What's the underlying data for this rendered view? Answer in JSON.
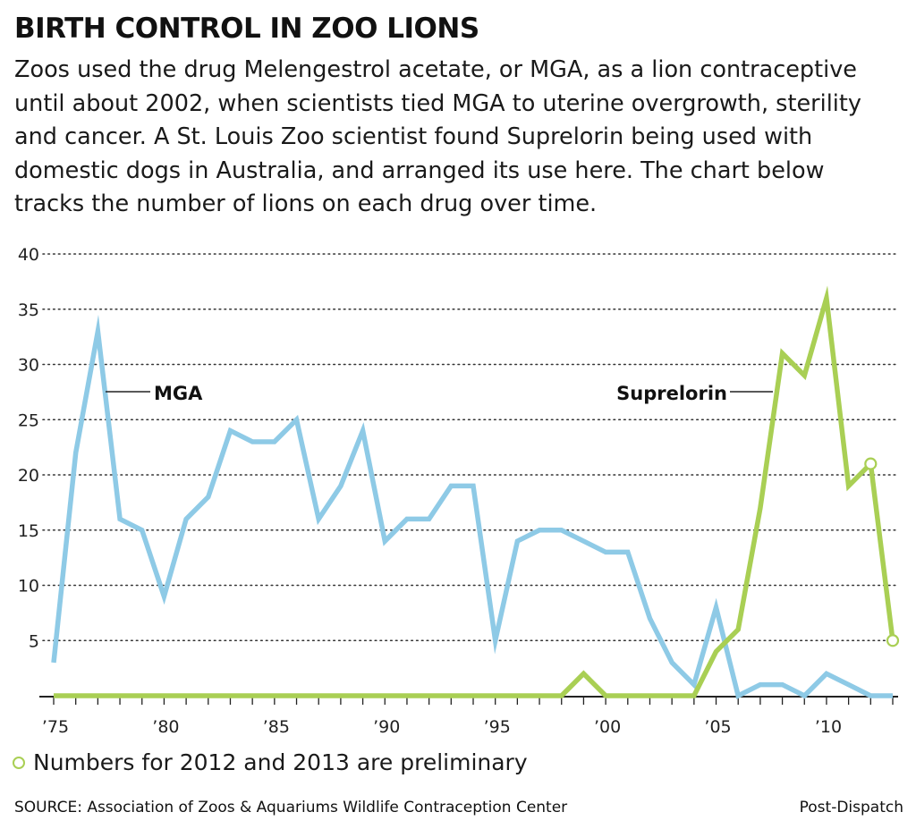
{
  "title": "BIRTH CONTROL IN ZOO LIONS",
  "intro": "Zoos used the drug Melengestrol acetate, or MGA, as a lion contraceptive until about 2002, when scientists tied MGA to uterine overgrowth, sterility and cancer. A St. Louis Zoo scientist found Suprelorin being used with domestic dogs in Australia, and arranged its use here. The chart below tracks the number of lions on each drug over time.",
  "note": "Numbers for 2012 and 2013 are preliminary",
  "source": "SOURCE: Association of Zoos & Aquariums Wildlife Contraception Center",
  "credit": "Post-Dispatch",
  "colors": {
    "mga": "#8ecae6",
    "suprelorin": "#a9cf54",
    "grid": "#333333",
    "axis": "#222222"
  },
  "chart_data": {
    "type": "line",
    "title": "BIRTH CONTROL IN ZOO LIONS",
    "xlabel": "",
    "ylabel": "",
    "x": [
      1975,
      1976,
      1977,
      1978,
      1979,
      1980,
      1981,
      1982,
      1983,
      1984,
      1985,
      1986,
      1987,
      1988,
      1989,
      1990,
      1991,
      1992,
      1993,
      1994,
      1995,
      1996,
      1997,
      1998,
      1999,
      2000,
      2001,
      2002,
      2003,
      2004,
      2005,
      2006,
      2007,
      2008,
      2009,
      2010,
      2011,
      2012,
      2013
    ],
    "xlim": [
      1975,
      2013
    ],
    "ylim": [
      0,
      40
    ],
    "yticks": [
      5,
      10,
      15,
      20,
      25,
      30,
      35,
      40
    ],
    "ytick_labels": [
      "5",
      "10",
      "15",
      "20",
      "25",
      "30",
      "35",
      "40"
    ],
    "xticks": [
      1975,
      1980,
      1985,
      1990,
      1995,
      2000,
      2005,
      2010
    ],
    "xtick_labels": [
      "’75",
      "’80",
      "’85",
      "’90",
      "’95",
      "’00",
      "’05",
      "’10"
    ],
    "grid": "horizontal dotted",
    "preliminary_x": [
      2012,
      2013
    ],
    "series": [
      {
        "name": "MGA",
        "label": "MGA",
        "color": "#8ecae6",
        "values": [
          3,
          22,
          33,
          16,
          15,
          9,
          16,
          18,
          24,
          23,
          23,
          25,
          16,
          19,
          24,
          14,
          16,
          16,
          19,
          19,
          5,
          14,
          15,
          15,
          14,
          13,
          13,
          7,
          3,
          1,
          8,
          0,
          1,
          1,
          0,
          2,
          1,
          0,
          0
        ]
      },
      {
        "name": "Suprelorin",
        "label": "Suprelorin",
        "color": "#a9cf54",
        "values": [
          0,
          0,
          0,
          0,
          0,
          0,
          0,
          0,
          0,
          0,
          0,
          0,
          0,
          0,
          0,
          0,
          0,
          0,
          0,
          0,
          0,
          0,
          0,
          0,
          2,
          0,
          0,
          0,
          0,
          0,
          4,
          6,
          17,
          31,
          29,
          36,
          19,
          21,
          5
        ]
      }
    ]
  }
}
